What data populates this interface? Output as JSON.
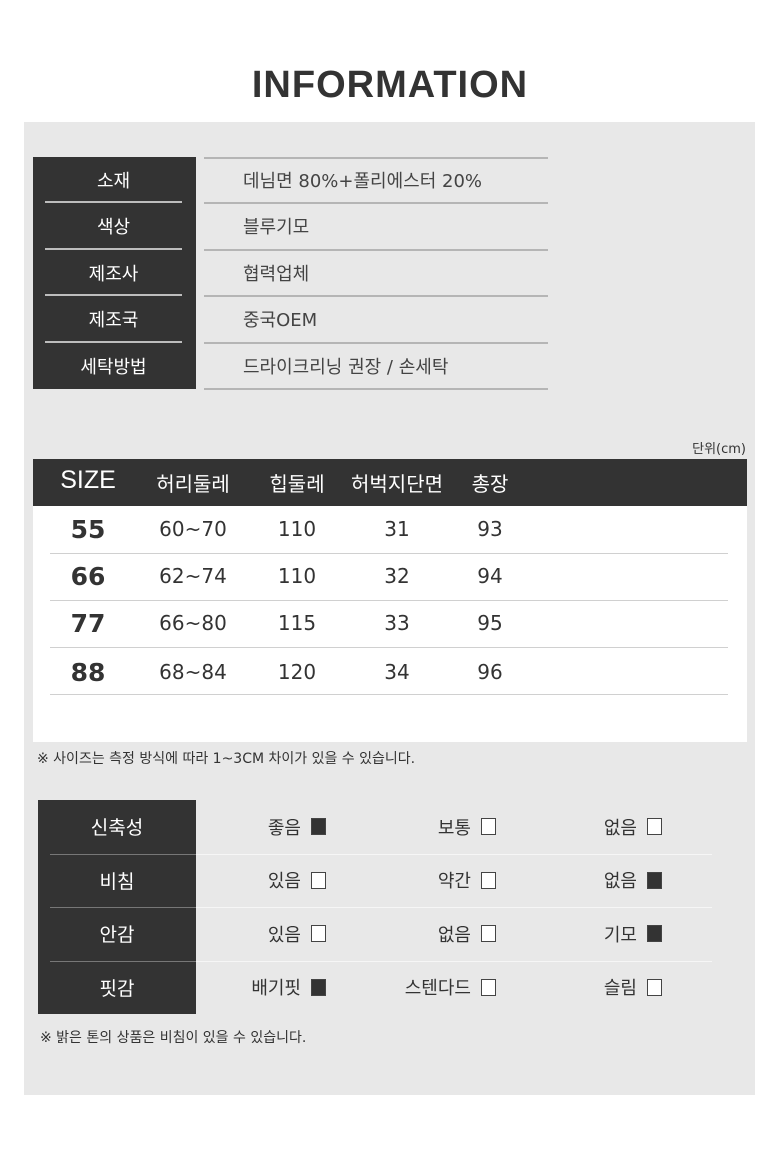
{
  "title": "INFORMATION",
  "info": [
    {
      "label": "소재",
      "value": "데님면 80%+폴리에스터 20%"
    },
    {
      "label": "색상",
      "value": "블루기모"
    },
    {
      "label": "제조사",
      "value": "협력업체"
    },
    {
      "label": "제조국",
      "value": "중국OEM"
    },
    {
      "label": "세탁방법",
      "value": "드라이크리닝 권장 / 손세탁"
    }
  ],
  "size_table": {
    "unit": "단위(cm)",
    "headers": [
      "SIZE",
      "허리둘레",
      "힙둘레",
      "허벅지단면",
      "총장"
    ],
    "rows": [
      [
        "55",
        "60~70",
        "110",
        "31",
        "93"
      ],
      [
        "66",
        "62~74",
        "110",
        "32",
        "94"
      ],
      [
        "77",
        "66~80",
        "115",
        "33",
        "95"
      ],
      [
        "88",
        "68~84",
        "120",
        "34",
        "96"
      ]
    ],
    "note": "※ 사이즈는 측정 방식에 따라 1~3CM 차이가 있을 수 있습니다."
  },
  "attributes": {
    "rows": [
      {
        "label": "신축성",
        "options": [
          {
            "text": "좋음",
            "checked": true
          },
          {
            "text": "보통",
            "checked": false
          },
          {
            "text": "없음",
            "checked": false
          }
        ]
      },
      {
        "label": "비침",
        "options": [
          {
            "text": "있음",
            "checked": false
          },
          {
            "text": "약간",
            "checked": false
          },
          {
            "text": "없음",
            "checked": true
          }
        ]
      },
      {
        "label": "안감",
        "options": [
          {
            "text": "있음",
            "checked": false
          },
          {
            "text": "없음",
            "checked": false
          },
          {
            "text": "기모",
            "checked": true
          }
        ]
      },
      {
        "label": "핏감",
        "options": [
          {
            "text": "배기핏",
            "checked": true
          },
          {
            "text": "스텐다드",
            "checked": false
          },
          {
            "text": "슬림",
            "checked": false
          }
        ]
      }
    ],
    "note": "※ 밝은 톤의 상품은 비침이 있을 수 있습니다."
  },
  "colors": {
    "dark": "#333333",
    "panel": "#e8e8e8"
  }
}
